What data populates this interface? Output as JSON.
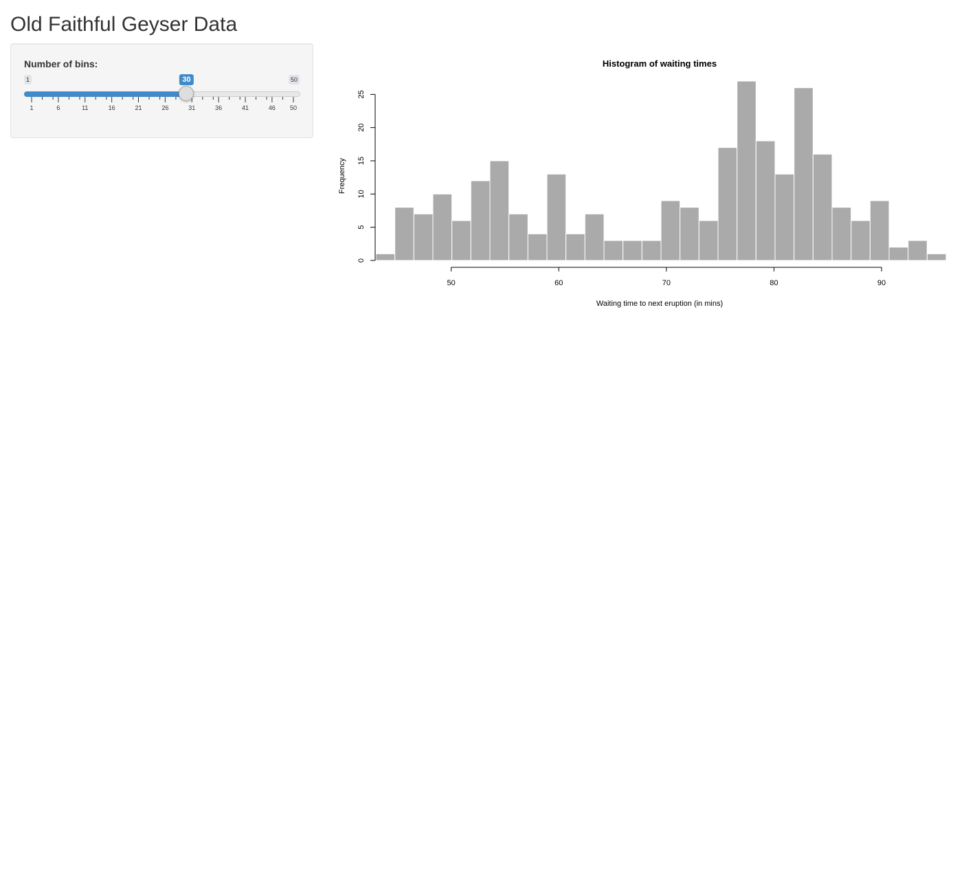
{
  "page": {
    "title": "Old Faithful Geyser Data"
  },
  "sidebar": {
    "bins_label": "Number of bins:",
    "slider": {
      "min": 1,
      "max": 50,
      "value": 30,
      "min_label": "1",
      "max_label": "50",
      "value_label": "30",
      "tick_labels": [
        "1",
        "6",
        "11",
        "16",
        "21",
        "26",
        "31",
        "36",
        "41",
        "46",
        "50"
      ],
      "accent_color": "#428bca"
    }
  },
  "chart_data": {
    "type": "bar",
    "title": "Histogram of waiting times",
    "xlabel": "Waiting time to next eruption (in mins)",
    "ylabel": "Frequency",
    "bin_start": 43,
    "bin_width": 1.7666667,
    "values": [
      1,
      8,
      7,
      10,
      6,
      12,
      15,
      7,
      4,
      13,
      4,
      7,
      3,
      3,
      3,
      9,
      8,
      6,
      17,
      27,
      18,
      13,
      26,
      16,
      8,
      6,
      9,
      2,
      3,
      1
    ],
    "x_ticks": [
      50,
      60,
      70,
      80,
      90
    ],
    "x_tick_labels": [
      "50",
      "60",
      "70",
      "80",
      "90"
    ],
    "y_ticks": [
      0,
      5,
      10,
      15,
      20,
      25
    ],
    "y_tick_labels": [
      "0",
      "5",
      "10",
      "15",
      "20",
      "25"
    ],
    "xlim": [
      43,
      96
    ],
    "ylim": [
      0,
      27
    ],
    "bar_color": "#aaaaaa",
    "bar_border_color": "#ffffff",
    "grid": false
  }
}
